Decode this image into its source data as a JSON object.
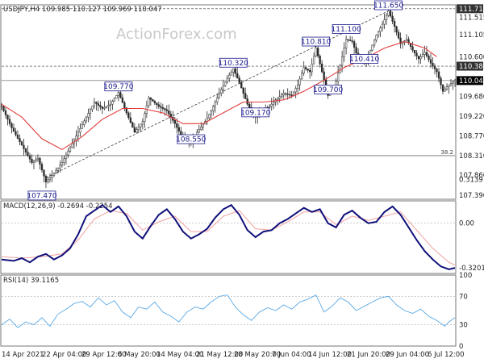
{
  "watermark": "ActionForex.com",
  "chart_data": [
    {
      "type": "candlestick",
      "header": "USDJPY,H4  109.985 110.127 109.969 110.047",
      "symbol": "USDJPY",
      "timeframe": "H4",
      "ohlc_last": {
        "open": 109.985,
        "high": 110.127,
        "low": 109.969,
        "close": 110.047
      },
      "ylim": [
        107.3,
        111.8
      ],
      "y_ticks": [
        "111.710",
        "111.515",
        "111.105",
        "110.600",
        "110.380",
        "110.047",
        "109.680",
        "109.220",
        "108.770",
        "108.310",
        "107.860",
        "107.390"
      ],
      "x_ticks": [
        "14 Apr 2021",
        "22 Apr 04:00",
        "29 Apr 12:00",
        "6 May 20:00",
        "14 May 04:00",
        "21 May 12:00",
        "28 May 20:00",
        "7 Jun 04:00",
        "14 Jun 12:00",
        "21 Jun 20:00",
        "29 Jun 04:00",
        "6 Jul 12:00"
      ],
      "price_path": [
        [
          0,
          109.45
        ],
        [
          5,
          108.95
        ],
        [
          10,
          108.55
        ],
        [
          15,
          108.15
        ],
        [
          18,
          108.25
        ],
        [
          22,
          107.7
        ],
        [
          26,
          107.9
        ],
        [
          30,
          108.15
        ],
        [
          34,
          108.5
        ],
        [
          38,
          108.85
        ],
        [
          42,
          109.2
        ],
        [
          46,
          109.55
        ],
        [
          50,
          109.4
        ],
        [
          54,
          109.5
        ],
        [
          58,
          109.77
        ],
        [
          62,
          109.3
        ],
        [
          66,
          108.85
        ],
        [
          70,
          109.1
        ],
        [
          73,
          109.65
        ],
        [
          78,
          109.45
        ],
        [
          82,
          109.35
        ],
        [
          86,
          109.05
        ],
        [
          90,
          108.7
        ],
        [
          94,
          108.6
        ],
        [
          97,
          108.85
        ],
        [
          101,
          109.1
        ],
        [
          104,
          109.35
        ],
        [
          108,
          109.75
        ],
        [
          112,
          110.1
        ],
        [
          115,
          110.32
        ],
        [
          118,
          110.0
        ],
        [
          122,
          109.5
        ],
        [
          126,
          109.2
        ],
        [
          129,
          109.35
        ],
        [
          133,
          109.45
        ],
        [
          136,
          109.6
        ],
        [
          140,
          109.75
        ],
        [
          144,
          109.7
        ],
        [
          147,
          109.95
        ],
        [
          150,
          110.35
        ],
        [
          153,
          110.25
        ],
        [
          156,
          110.8
        ],
        [
          159,
          110.25
        ],
        [
          162,
          109.7
        ],
        [
          165,
          109.85
        ],
        [
          168,
          110.4
        ],
        [
          171,
          111.0
        ],
        [
          174,
          110.95
        ],
        [
          177,
          110.55
        ],
        [
          180,
          110.45
        ],
        [
          183,
          110.75
        ],
        [
          186,
          111.1
        ],
        [
          189,
          111.35
        ],
        [
          192,
          111.66
        ],
        [
          195,
          111.3
        ],
        [
          198,
          110.9
        ],
        [
          201,
          111.0
        ],
        [
          204,
          110.75
        ],
        [
          207,
          110.55
        ],
        [
          210,
          110.7
        ],
        [
          213,
          110.45
        ],
        [
          216,
          110.25
        ],
        [
          219,
          109.8
        ],
        [
          222,
          109.95
        ],
        [
          225,
          110.05
        ]
      ],
      "horizontal_lines": [
        {
          "value": 111.71,
          "style": "dashed"
        },
        {
          "value": 110.38,
          "style": "dashed"
        },
        {
          "value": 110.047,
          "style": "solid"
        },
        {
          "value": 108.31,
          "style": "solid",
          "label": "38.2"
        }
      ],
      "trendline": {
        "from": [
          22,
          107.8
        ],
        "to": [
          192,
          111.66
        ],
        "style": "dashed"
      },
      "moving_average_path": [
        [
          0,
          109.5
        ],
        [
          10,
          109.2
        ],
        [
          20,
          108.7
        ],
        [
          30,
          108.45
        ],
        [
          40,
          108.75
        ],
        [
          50,
          109.15
        ],
        [
          60,
          109.4
        ],
        [
          70,
          109.4
        ],
        [
          80,
          109.3
        ],
        [
          90,
          109.05
        ],
        [
          100,
          109.05
        ],
        [
          110,
          109.3
        ],
        [
          120,
          109.55
        ],
        [
          130,
          109.55
        ],
        [
          140,
          109.6
        ],
        [
          150,
          109.8
        ],
        [
          160,
          110.05
        ],
        [
          170,
          110.35
        ],
        [
          180,
          110.55
        ],
        [
          190,
          110.8
        ],
        [
          200,
          110.95
        ],
        [
          210,
          110.8
        ],
        [
          216,
          110.6
        ]
      ],
      "annotations": [
        {
          "text": "107.470",
          "x": 20,
          "y": 107.47
        },
        {
          "text": "109.770",
          "x": 58,
          "y": 109.77
        },
        {
          "text": "108.550",
          "x": 94,
          "y": 108.55
        },
        {
          "text": "110.320",
          "x": 115,
          "y": 110.32
        },
        {
          "text": "109.170",
          "x": 126,
          "y": 109.17
        },
        {
          "text": "110.810",
          "x": 156,
          "y": 110.81
        },
        {
          "text": "109.700",
          "x": 162,
          "y": 109.7
        },
        {
          "text": "111.100",
          "x": 171,
          "y": 111.1
        },
        {
          "text": "110.410",
          "x": 180,
          "y": 110.41
        },
        {
          "text": "111.650",
          "x": 192,
          "y": 111.65
        }
      ]
    },
    {
      "type": "line",
      "header": "MACD(12,26,9) -0.2694 -0.2254",
      "name": "MACD(12,26,9)",
      "values_last": {
        "macd": -0.2694,
        "signal": -0.2254
      },
      "ylim": [
        -0.36,
        0.16
      ],
      "y_ticks": [
        "0.3139",
        "0.00",
        "-0.3201"
      ],
      "macd_path": [
        [
          0,
          -0.26
        ],
        [
          6,
          -0.27
        ],
        [
          10,
          -0.25
        ],
        [
          14,
          -0.28
        ],
        [
          18,
          -0.24
        ],
        [
          22,
          -0.22
        ],
        [
          26,
          -0.26
        ],
        [
          30,
          -0.23
        ],
        [
          34,
          -0.18
        ],
        [
          38,
          -0.08
        ],
        [
          42,
          0.05
        ],
        [
          46,
          0.09
        ],
        [
          50,
          0.13
        ],
        [
          54,
          0.08
        ],
        [
          58,
          0.12
        ],
        [
          62,
          0.05
        ],
        [
          66,
          -0.06
        ],
        [
          70,
          -0.11
        ],
        [
          74,
          -0.02
        ],
        [
          78,
          0.06
        ],
        [
          82,
          0.1
        ],
        [
          86,
          0.03
        ],
        [
          90,
          -0.06
        ],
        [
          94,
          -0.11
        ],
        [
          98,
          -0.08
        ],
        [
          102,
          -0.04
        ],
        [
          106,
          0.04
        ],
        [
          110,
          0.1
        ],
        [
          114,
          0.13
        ],
        [
          118,
          0.06
        ],
        [
          122,
          -0.05
        ],
        [
          126,
          -0.1
        ],
        [
          130,
          -0.06
        ],
        [
          134,
          -0.05
        ],
        [
          138,
          0.0
        ],
        [
          142,
          0.03
        ],
        [
          146,
          0.07
        ],
        [
          150,
          0.11
        ],
        [
          154,
          0.08
        ],
        [
          158,
          0.1
        ],
        [
          162,
          0.0
        ],
        [
          166,
          -0.03
        ],
        [
          170,
          0.06
        ],
        [
          174,
          0.09
        ],
        [
          178,
          0.04
        ],
        [
          182,
          0.0
        ],
        [
          186,
          0.01
        ],
        [
          190,
          0.08
        ],
        [
          194,
          0.12
        ],
        [
          198,
          0.06
        ],
        [
          202,
          -0.03
        ],
        [
          206,
          -0.12
        ],
        [
          210,
          -0.2
        ],
        [
          214,
          -0.26
        ],
        [
          218,
          -0.31
        ],
        [
          222,
          -0.33
        ],
        [
          225,
          -0.32
        ]
      ],
      "signal_path": [
        [
          0,
          -0.24
        ],
        [
          10,
          -0.25
        ],
        [
          20,
          -0.24
        ],
        [
          30,
          -0.22
        ],
        [
          38,
          -0.12
        ],
        [
          46,
          0.03
        ],
        [
          54,
          0.09
        ],
        [
          62,
          0.07
        ],
        [
          70,
          -0.05
        ],
        [
          78,
          0.01
        ],
        [
          86,
          0.05
        ],
        [
          94,
          -0.06
        ],
        [
          102,
          -0.06
        ],
        [
          110,
          0.05
        ],
        [
          118,
          0.09
        ],
        [
          126,
          -0.04
        ],
        [
          134,
          -0.05
        ],
        [
          142,
          0.01
        ],
        [
          150,
          0.08
        ],
        [
          158,
          0.08
        ],
        [
          166,
          -0.01
        ],
        [
          174,
          0.05
        ],
        [
          182,
          0.02
        ],
        [
          190,
          0.05
        ],
        [
          198,
          0.08
        ],
        [
          206,
          -0.05
        ],
        [
          214,
          -0.18
        ],
        [
          222,
          -0.28
        ],
        [
          225,
          -0.3
        ]
      ]
    },
    {
      "type": "line",
      "header": "RSI(14) 39.1165",
      "name": "RSI(14)",
      "value_last": 39.1165,
      "ylim": [
        0,
        100
      ],
      "y_ticks": [
        "100",
        "70",
        "30",
        "0"
      ],
      "levels": [
        70,
        30
      ],
      "rsi_path": [
        [
          0,
          30
        ],
        [
          4,
          38
        ],
        [
          8,
          26
        ],
        [
          12,
          34
        ],
        [
          16,
          30
        ],
        [
          20,
          40
        ],
        [
          24,
          28
        ],
        [
          28,
          45
        ],
        [
          32,
          52
        ],
        [
          36,
          60
        ],
        [
          40,
          63
        ],
        [
          44,
          55
        ],
        [
          48,
          68
        ],
        [
          52,
          58
        ],
        [
          56,
          64
        ],
        [
          60,
          48
        ],
        [
          64,
          40
        ],
        [
          68,
          55
        ],
        [
          72,
          52
        ],
        [
          76,
          62
        ],
        [
          80,
          48
        ],
        [
          84,
          42
        ],
        [
          88,
          34
        ],
        [
          92,
          48
        ],
        [
          96,
          55
        ],
        [
          100,
          52
        ],
        [
          104,
          62
        ],
        [
          108,
          70
        ],
        [
          112,
          72
        ],
        [
          116,
          55
        ],
        [
          120,
          44
        ],
        [
          124,
          36
        ],
        [
          128,
          48
        ],
        [
          132,
          54
        ],
        [
          136,
          50
        ],
        [
          140,
          58
        ],
        [
          144,
          52
        ],
        [
          148,
          62
        ],
        [
          152,
          66
        ],
        [
          156,
          72
        ],
        [
          160,
          48
        ],
        [
          164,
          56
        ],
        [
          168,
          68
        ],
        [
          172,
          62
        ],
        [
          176,
          50
        ],
        [
          180,
          56
        ],
        [
          184,
          62
        ],
        [
          188,
          68
        ],
        [
          192,
          70
        ],
        [
          196,
          58
        ],
        [
          200,
          50
        ],
        [
          204,
          46
        ],
        [
          208,
          52
        ],
        [
          212,
          42
        ],
        [
          216,
          36
        ],
        [
          220,
          28
        ],
        [
          222,
          34
        ],
        [
          225,
          40
        ]
      ]
    }
  ]
}
